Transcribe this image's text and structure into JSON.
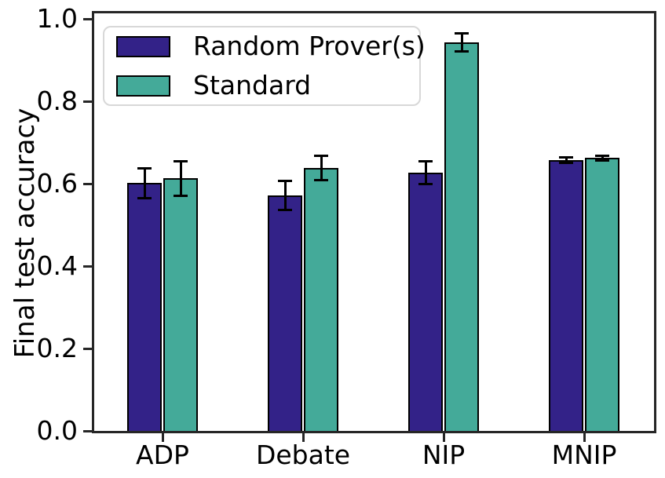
{
  "chart_data": {
    "type": "bar",
    "title": "",
    "xlabel": "",
    "ylabel": "Final test accuracy",
    "categories": [
      "ADP",
      "Debate",
      "NIP",
      "MNIP"
    ],
    "series": [
      {
        "name": "Random Prover(s)",
        "color": "#332288",
        "values": [
          0.601,
          0.572,
          0.627,
          0.657
        ],
        "errors": [
          0.037,
          0.035,
          0.028,
          0.007
        ]
      },
      {
        "name": "Standard",
        "color": "#44AA99",
        "values": [
          0.613,
          0.638,
          0.943,
          0.662
        ],
        "errors": [
          0.042,
          0.029,
          0.022,
          0.006
        ]
      }
    ],
    "yticks": [
      0.0,
      0.2,
      0.4,
      0.6,
      0.8,
      1.0
    ],
    "ylim": [
      0.0,
      1.015
    ],
    "grid": false,
    "error_bars": true,
    "bar_edge_color": "#000000",
    "error_bar_color": "#000000",
    "spine_color": "#262626",
    "legend_position": "upper left",
    "legend_border_color": "#d8d8d8",
    "background_color": "#ffffff"
  }
}
